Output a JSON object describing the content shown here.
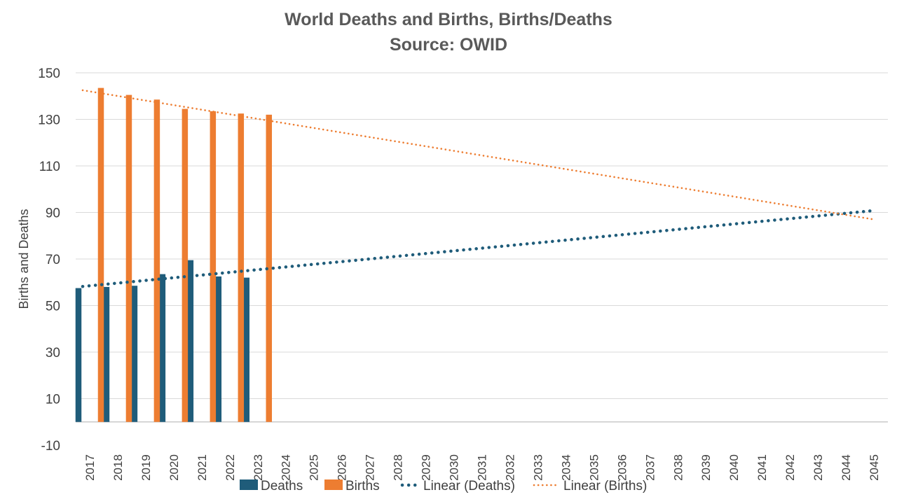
{
  "chart_data": {
    "type": "bar",
    "title": "World Deaths and Births, Births/Deaths",
    "subtitle": "Source: OWID",
    "xlabel": "",
    "ylabel": "Births and Deaths",
    "ylim": [
      -10,
      150
    ],
    "yticks": [
      -10,
      10,
      30,
      50,
      70,
      90,
      110,
      130,
      150
    ],
    "grid": true,
    "legend_position": "bottom",
    "categories": [
      "2017",
      "2018",
      "2019",
      "2020",
      "2021",
      "2022",
      "2023",
      "2024",
      "2025",
      "2026",
      "2027",
      "2028",
      "2029",
      "2030",
      "2031",
      "2032",
      "2033",
      "2034",
      "2035",
      "2036",
      "2037",
      "2038",
      "2039",
      "2040",
      "2041",
      "2042",
      "2043",
      "2044",
      "2045"
    ],
    "series": [
      {
        "name": "Deaths",
        "kind": "bar",
        "color": "#1f5c7a",
        "values": [
          57.5,
          58,
          58.5,
          63.5,
          69.5,
          62.5,
          62,
          null,
          null,
          null,
          null,
          null,
          null,
          null,
          null,
          null,
          null,
          null,
          null,
          null,
          null,
          null,
          null,
          null,
          null,
          null,
          null,
          null,
          null
        ]
      },
      {
        "name": "Births",
        "kind": "bar",
        "color": "#ed7d31",
        "values": [
          143.5,
          140.5,
          138.5,
          134.5,
          133.5,
          132.5,
          132,
          null,
          null,
          null,
          null,
          null,
          null,
          null,
          null,
          null,
          null,
          null,
          null,
          null,
          null,
          null,
          null,
          null,
          null,
          null,
          null,
          null,
          null
        ]
      },
      {
        "name": "Linear (Deaths)",
        "kind": "trend",
        "color": "#1f5c7a",
        "from": [
          "2017",
          58.2
        ],
        "to": [
          "2045",
          90.8
        ]
      },
      {
        "name": "Linear (Births)",
        "kind": "trend",
        "color": "#ed7d31",
        "from": [
          "2017",
          142.5
        ],
        "to": [
          "2045",
          87
        ]
      }
    ]
  }
}
